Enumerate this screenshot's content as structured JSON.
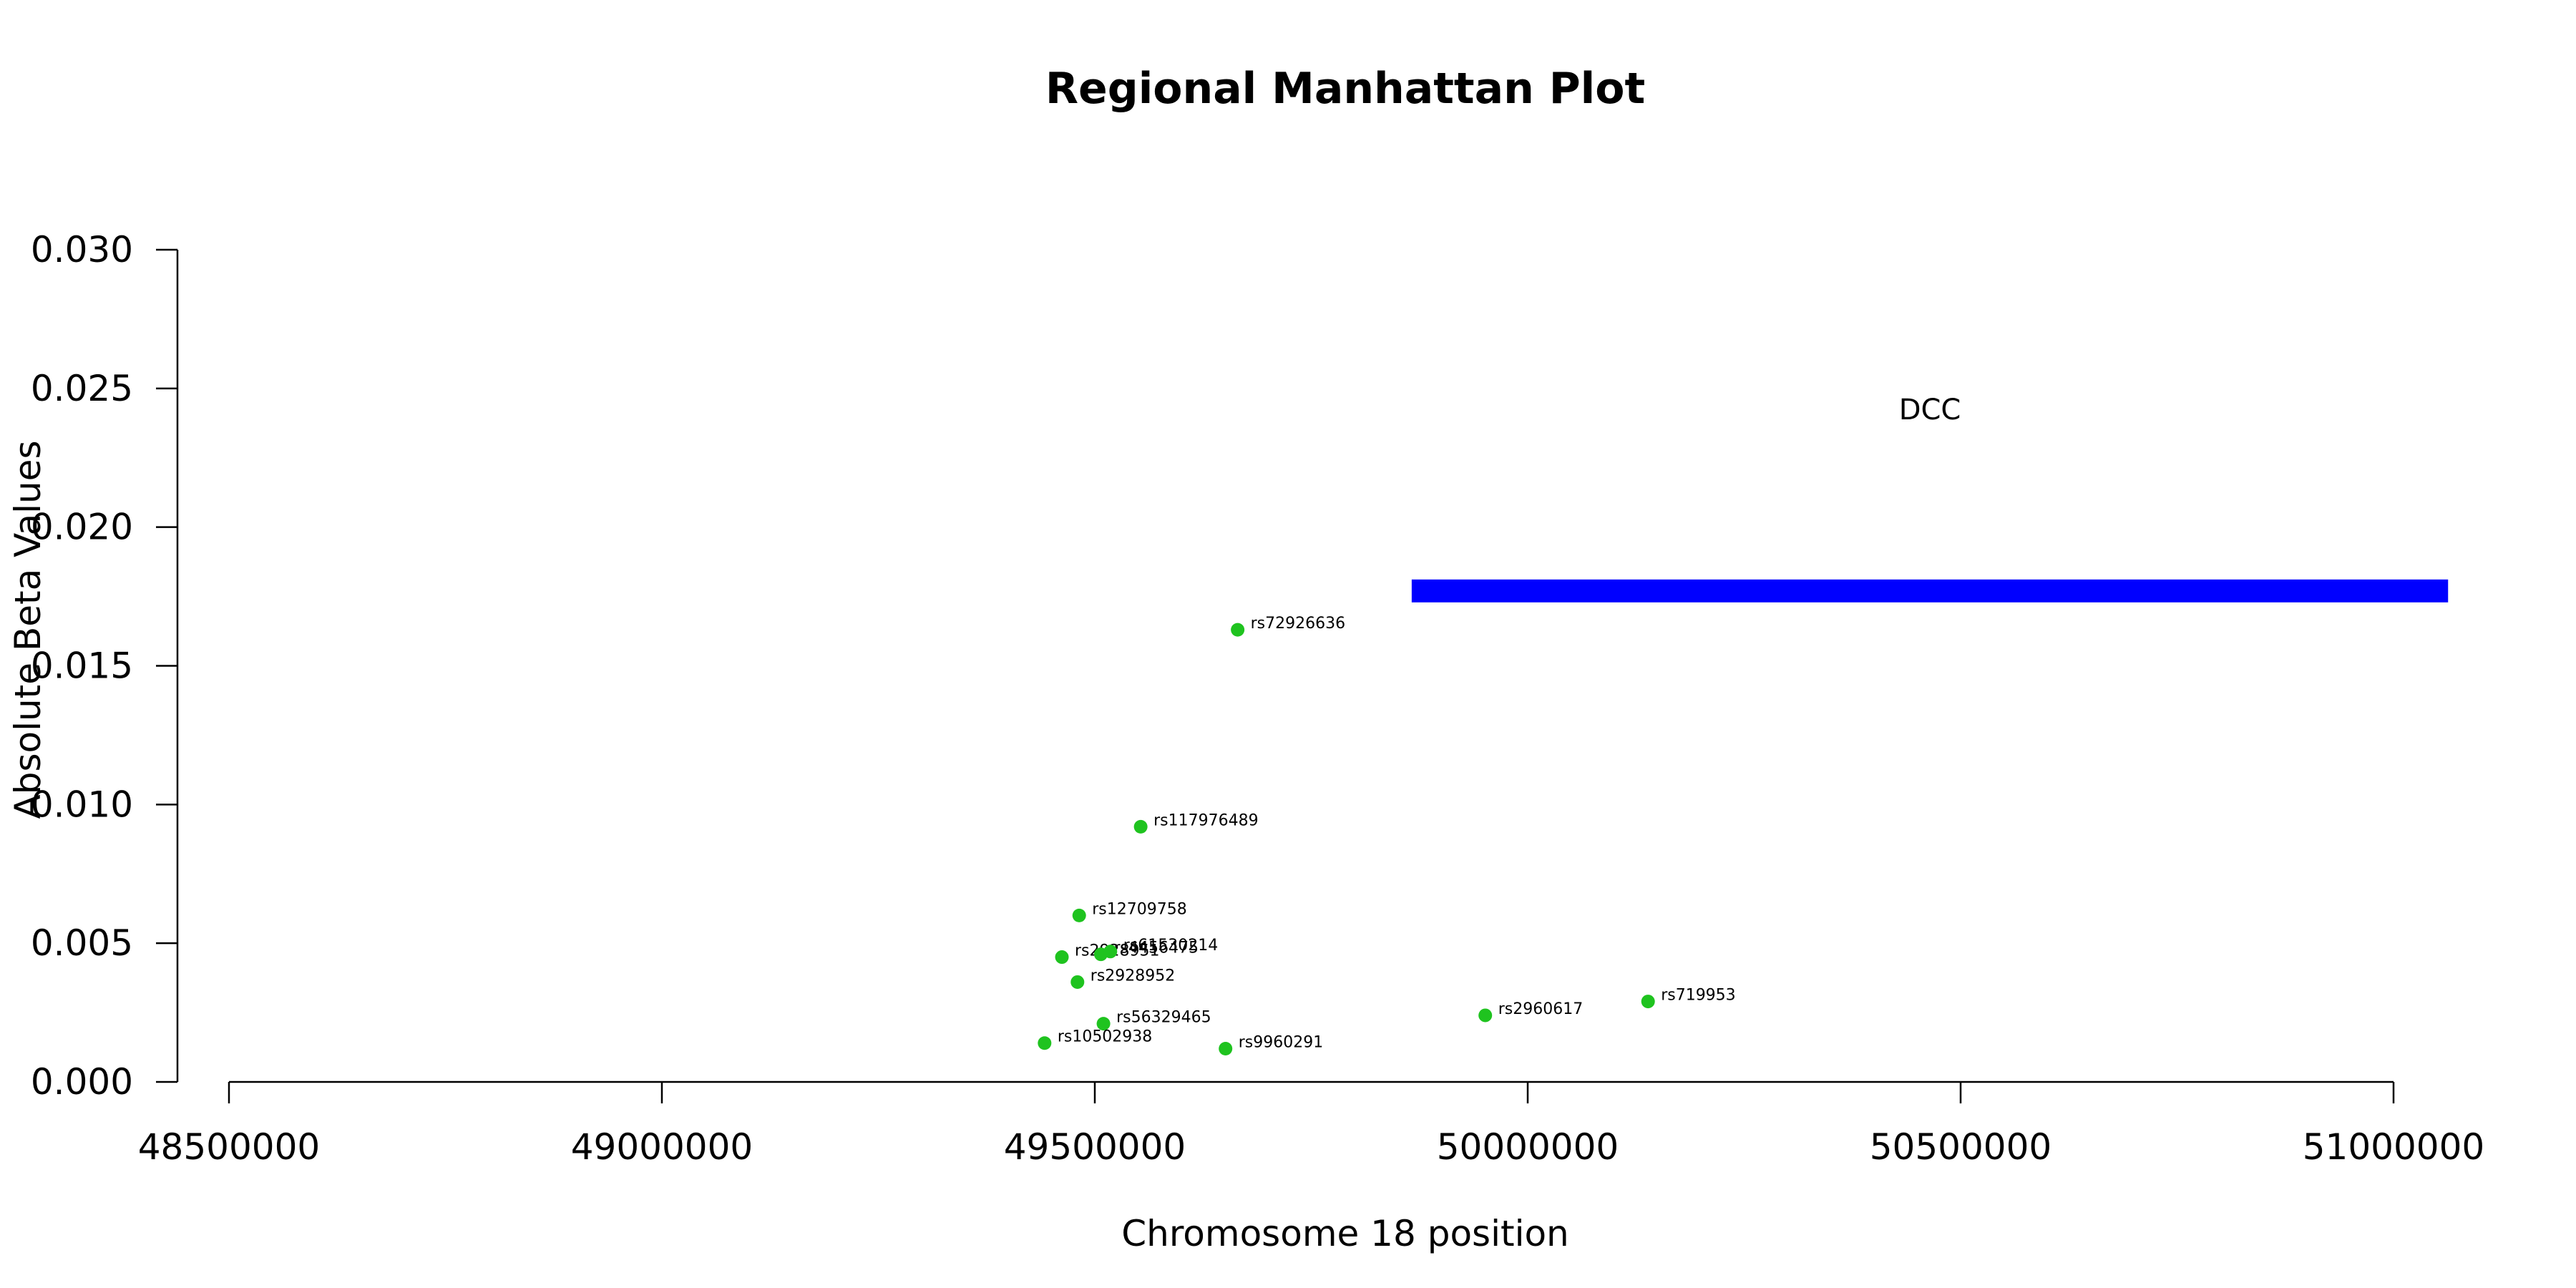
{
  "chart_data": {
    "type": "scatter",
    "title": "Regional Manhattan Plot",
    "xlabel": "Chromosome 18 position",
    "ylabel": "Absolute Beta Values",
    "xlim": [
      48500000,
      51000000
    ],
    "ylim": [
      0,
      0.03
    ],
    "x_ticks": [
      48500000,
      49000000,
      49500000,
      50000000,
      50500000,
      51000000
    ],
    "y_ticks": [
      0.0,
      0.005,
      0.01,
      0.015,
      0.02,
      0.025,
      0.03
    ],
    "x_tick_labels": [
      "48500000",
      "49000000",
      "49500000",
      "50000000",
      "50500000",
      "51000000"
    ],
    "y_tick_labels": [
      "0.000",
      "0.005",
      "0.010",
      "0.015",
      "0.020",
      "0.025",
      "0.030"
    ],
    "grid": false,
    "point_color": "#1FC31F",
    "points": [
      {
        "label": "rs72926636",
        "x": 49665000,
        "y": 0.0163
      },
      {
        "label": "rs117976489",
        "x": 49553000,
        "y": 0.0092
      },
      {
        "label": "rs12709758",
        "x": 49482000,
        "y": 0.006
      },
      {
        "label": "rs2928951",
        "x": 49462000,
        "y": 0.0045
      },
      {
        "label": "rs4456475",
        "x": 49507000,
        "y": 0.0046
      },
      {
        "label": "rs61530214",
        "x": 49518000,
        "y": 0.0047
      },
      {
        "label": "rs2928952",
        "x": 49480000,
        "y": 0.0036
      },
      {
        "label": "rs56329465",
        "x": 49510000,
        "y": 0.0021
      },
      {
        "label": "rs10502938",
        "x": 49442000,
        "y": 0.0014
      },
      {
        "label": "rs9960291",
        "x": 49651000,
        "y": 0.0012
      },
      {
        "label": "rs2960617",
        "x": 49951000,
        "y": 0.0024
      },
      {
        "label": "rs719953",
        "x": 50139000,
        "y": 0.0029
      }
    ],
    "genes": [
      {
        "name": "DCC",
        "start": 49866000,
        "end": 51063000,
        "y": 0.0177,
        "color": "#0000FF"
      }
    ]
  }
}
